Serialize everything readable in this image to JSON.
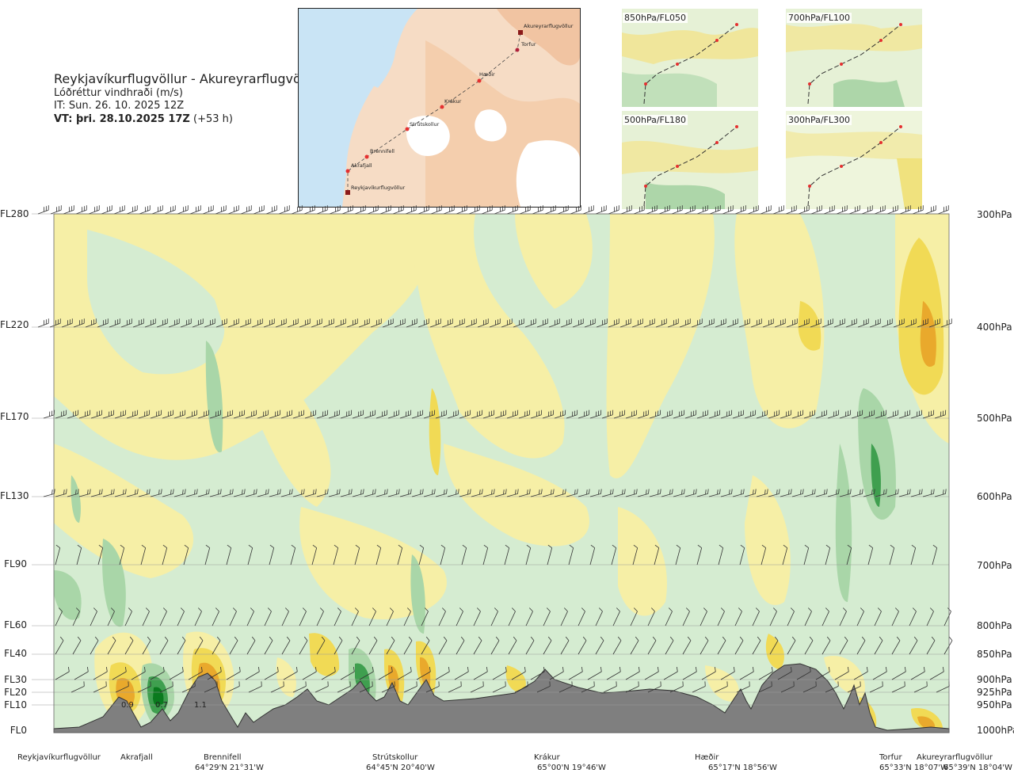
{
  "header": {
    "route": "Reykjavíkurflugvöllur - Akureyrarflugvöllur",
    "product": "Lóðréttur vindhraði (m/s)",
    "issue_time": "IT: Sun. 26. 10. 2025 12Z",
    "valid_prefix": "VT: þri. 28.10.2025 17Z",
    "valid_suffix": "(+53 h)"
  },
  "map": {
    "stations": [
      "Akureyrarflugvöllur",
      "Torfur",
      "Hæðir",
      "Krákur",
      "Strútskollur",
      "Brennifell",
      "Akrafjall",
      "Reykjavíkurflugvöllur"
    ]
  },
  "insets": [
    "850hPa/FL050",
    "700hPa/FL100",
    "500hPa/FL180",
    "300hPa/FL300"
  ],
  "flight_levels": [
    "FL280",
    "FL220",
    "FL170",
    "FL130",
    "FL90",
    "FL60",
    "FL40",
    "FL30",
    "FL20",
    "FL10",
    "FL0"
  ],
  "pressure_levels": [
    "300hPa",
    "400hPa",
    "500hPa",
    "600hPa",
    "700hPa",
    "800hPa",
    "850hPa",
    "900hPa",
    "925hPa",
    "950hPa",
    "1000hPa"
  ],
  "value_labels": [
    "0.9",
    "0.7",
    "1.1"
  ],
  "route_points": [
    {
      "name": "Reykjavíkurflugvöllur",
      "coord": ""
    },
    {
      "name": "Akrafjall",
      "coord": ""
    },
    {
      "name": "Brennifell",
      "coord": "64°29'N 21°31'W"
    },
    {
      "name": "Strútskollur",
      "coord": "64°45'N 20°40'W"
    },
    {
      "name": "Krákur",
      "coord": "65°00'N 19°46'W"
    },
    {
      "name": "Hæðir",
      "coord": "65°17'N 18°56'W"
    },
    {
      "name": "Torfur",
      "coord": "65°33'N 18°07'W"
    },
    {
      "name": "Akureyrarflugvöllur",
      "coord": "65°39'N 18°04'W"
    }
  ],
  "colors": {
    "strong_down": "#0a7a1e",
    "moderate_down": "#3f9f4f",
    "weak_down": "#a9d6a8",
    "very_weak_down": "#d5ecd1",
    "neutral": "#eef7e6",
    "very_weak_up": "#f6efa6",
    "weak_up": "#f1da55",
    "moderate_up": "#e9a92c",
    "strong_up": "#a8551c",
    "terrain": "#7f7f7f",
    "sea": "#c9e4f5"
  }
}
